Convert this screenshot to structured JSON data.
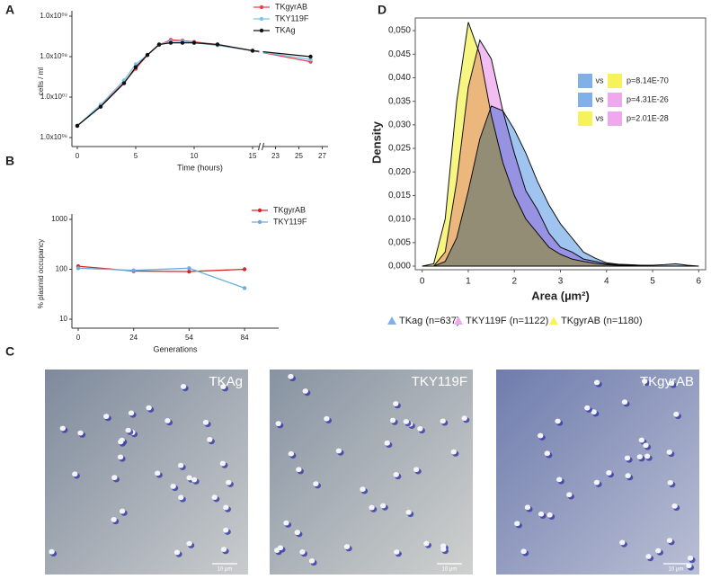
{
  "panel_labels": [
    "A",
    "B",
    "C",
    "D"
  ],
  "chart_data": [
    {
      "type": "line",
      "ylog": true,
      "xlabel": "Time (hours)",
      "ylabel": "cells / ml",
      "x": [
        0,
        2,
        4,
        5,
        6,
        7,
        8,
        9,
        10,
        12,
        15,
        26
      ],
      "xlim": [
        0,
        27.5
      ],
      "x_break": [
        15.5,
        22
      ],
      "xticks": [
        0,
        5,
        10,
        15,
        23,
        25,
        27
      ],
      "ylim": [
        1000000,
        1000000000
      ],
      "yticks": [
        {
          "value": 1000000,
          "label": "1.0x10⁰⁶"
        },
        {
          "value": 10000000,
          "label": "1.0x10⁰⁷"
        },
        {
          "value": 100000000,
          "label": "1.0x10⁰⁸"
        },
        {
          "value": 1000000000,
          "label": "1.0x10⁰⁹"
        }
      ],
      "legend": "upper right",
      "series": [
        {
          "name": "TKgyrAB",
          "color": "#e8414f",
          "values": [
            1950000,
            6000000,
            23000000,
            50000000,
            110000000,
            195000000,
            260000000,
            250000000,
            230000000,
            200000000,
            140000000,
            75000000
          ]
        },
        {
          "name": "TKY119F",
          "color": "#7cc4e8",
          "values": [
            1950000,
            6500000,
            26000000,
            65000000,
            110000000,
            200000000,
            240000000,
            240000000,
            220000000,
            190000000,
            140000000,
            85000000
          ]
        },
        {
          "name": "TKAg",
          "color": "#111111",
          "values": [
            1950000,
            5800000,
            22000000,
            55000000,
            110000000,
            200000000,
            220000000,
            220000000,
            220000000,
            200000000,
            140000000,
            100000000
          ]
        }
      ]
    },
    {
      "type": "line",
      "ylog": true,
      "xlabel": "Generations",
      "ylabel": "% plasmid occupancy",
      "categories": [
        "0",
        "24",
        "54",
        "84"
      ],
      "ylim": [
        10,
        1000
      ],
      "yticks": [
        10,
        100,
        1000
      ],
      "legend": "right",
      "series": [
        {
          "name": "TKgyrAB",
          "color": "#d9262e",
          "values": [
            115,
            92,
            90,
            100
          ]
        },
        {
          "name": "TKY119F",
          "color": "#6aaee0",
          "values": [
            105,
            95,
            105,
            42
          ]
        }
      ]
    },
    {
      "type": "area",
      "xlabel": "Area (µm²)",
      "ylabel": "Density",
      "x": [
        0,
        0.25,
        0.5,
        0.75,
        1,
        1.25,
        1.5,
        1.75,
        2,
        2.25,
        2.5,
        2.75,
        3,
        3.25,
        3.5,
        3.75,
        4,
        4.25,
        4.5,
        4.75,
        5,
        5.25,
        5.5,
        5.75,
        6
      ],
      "xlim": [
        -0.15,
        6.15
      ],
      "xticks": [
        0,
        1,
        2,
        3,
        4,
        5,
        6
      ],
      "ylim": [
        0,
        0.0525
      ],
      "yticks": [
        {
          "value": 0,
          "label": "0,000"
        },
        {
          "value": 0.005,
          "label": "0,005"
        },
        {
          "value": 0.01,
          "label": "0,010"
        },
        {
          "value": 0.015,
          "label": "0,015"
        },
        {
          "value": 0.02,
          "label": "0,020"
        },
        {
          "value": 0.025,
          "label": "0,025"
        },
        {
          "value": 0.03,
          "label": "0,030"
        },
        {
          "value": 0.035,
          "label": "0,035"
        },
        {
          "value": 0.04,
          "label": "0,040"
        },
        {
          "value": 0.045,
          "label": "0,045"
        },
        {
          "value": 0.05,
          "label": "0,050"
        }
      ],
      "legend": "bottom",
      "series": [
        {
          "name": "TKgyrAB (n=1180)",
          "color": "#f6f35a",
          "values": [
            0,
            0.0005,
            0.01,
            0.035,
            0.0518,
            0.045,
            0.032,
            0.022,
            0.015,
            0.01,
            0.007,
            0.004,
            0.0025,
            0.0015,
            0.001,
            0.0006,
            0.0003,
            0.0002,
            0.0001,
            0,
            0,
            0,
            0,
            0,
            0
          ]
        },
        {
          "name": "TKY119F (n=1122)",
          "color": "#eea8ee",
          "values": [
            0,
            0,
            0.003,
            0.018,
            0.038,
            0.048,
            0.044,
            0.033,
            0.024,
            0.016,
            0.012,
            0.007,
            0.004,
            0.003,
            0.0015,
            0.001,
            0.0005,
            0.0003,
            0.0002,
            0.0001,
            0,
            0,
            0,
            0,
            0
          ]
        },
        {
          "name": "TKag (n=637)",
          "color": "#7fb0ea",
          "values": [
            0,
            0,
            0.001,
            0.006,
            0.016,
            0.027,
            0.034,
            0.033,
            0.029,
            0.024,
            0.018,
            0.013,
            0.009,
            0.006,
            0.003,
            0.0017,
            0.0007,
            0.0004,
            0.0003,
            0.0002,
            0.0002,
            0.0003,
            0.0005,
            0.0002,
            0
          ]
        }
      ],
      "comparisons": [
        {
          "label": "vs",
          "p": "p=8.14E-70"
        },
        {
          "label": "vs",
          "p": "p=4.31E-26"
        },
        {
          "label": "vs",
          "p": "p=2.01E-28"
        }
      ]
    }
  ],
  "micrographs": [
    {
      "label": "TKAg",
      "scale_bar": "10 µm"
    },
    {
      "label": "TKY119F",
      "scale_bar": "10 µm"
    },
    {
      "label": "TKgyrAB",
      "scale_bar": "10 µm"
    }
  ]
}
